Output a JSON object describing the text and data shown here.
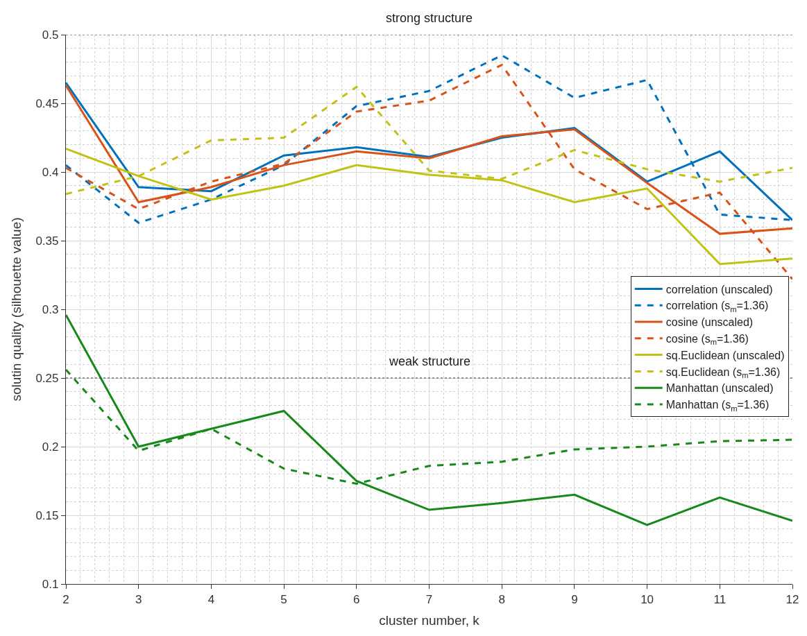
{
  "chart_data": {
    "type": "line",
    "xlabel": "cluster number, k",
    "ylabel": "solutin quality (silhouette value)",
    "x": [
      2,
      3,
      4,
      5,
      6,
      7,
      8,
      9,
      10,
      11,
      12
    ],
    "xlim": [
      2,
      12
    ],
    "xticks": [
      2,
      3,
      4,
      5,
      6,
      7,
      8,
      9,
      10,
      11,
      12
    ],
    "ylim": [
      0.1,
      0.5
    ],
    "yticks": [
      0.1,
      0.15,
      0.2,
      0.25,
      0.3,
      0.35,
      0.4,
      0.45,
      0.5
    ],
    "grid": true,
    "legend": "bottom right",
    "marker": "none",
    "series": [
      {
        "name": "correlation (unscaled)",
        "color": "#0072bd",
        "line_style": "solid",
        "values": [
          0.465,
          0.389,
          0.386,
          0.412,
          0.418,
          0.411,
          0.425,
          0.432,
          0.393,
          0.415,
          0.365
        ]
      },
      {
        "name": "correlation (s$_{m}$=1.36)",
        "color": "#0072bd",
        "line_style": "dashed",
        "values": [
          0.405,
          0.363,
          0.38,
          0.405,
          0.448,
          0.459,
          0.485,
          0.454,
          0.467,
          0.369,
          0.365
        ]
      },
      {
        "name": "cosine (unscaled)",
        "color": "#d95319",
        "line_style": "solid",
        "values": [
          0.463,
          0.378,
          0.389,
          0.405,
          0.415,
          0.41,
          0.426,
          0.431,
          0.392,
          0.355,
          0.359
        ]
      },
      {
        "name": "cosine (s$_{m}$=1.36)",
        "color": "#d95319",
        "line_style": "dashed",
        "values": [
          0.403,
          0.373,
          0.393,
          0.406,
          0.444,
          0.452,
          0.478,
          0.402,
          0.373,
          0.385,
          0.322
        ]
      },
      {
        "name": "sq.Euclidean (unscaled)",
        "color": "#c2c215",
        "line_style": "solid",
        "values": [
          0.417,
          0.397,
          0.38,
          0.39,
          0.405,
          0.398,
          0.394,
          0.378,
          0.388,
          0.333,
          0.337
        ]
      },
      {
        "name": "sq.Euclidean (s$_{m}$=1.36)",
        "color": "#c2c215",
        "line_style": "dashed",
        "values": [
          0.384,
          0.397,
          0.423,
          0.425,
          0.462,
          0.401,
          0.395,
          0.416,
          0.402,
          0.393,
          0.403
        ]
      },
      {
        "name": "Manhattan (unscaled)",
        "color": "#17891a",
        "line_style": "solid",
        "values": [
          0.296,
          0.2,
          0.213,
          0.226,
          0.175,
          0.154,
          0.159,
          0.165,
          0.143,
          0.163,
          0.146
        ]
      },
      {
        "name": "Manhattan (s$_{m}$=1.36)",
        "color": "#17891a",
        "line_style": "dashed",
        "values": [
          0.256,
          0.197,
          0.213,
          0.184,
          0.173,
          0.186,
          0.189,
          0.198,
          0.2,
          0.204,
          0.205
        ]
      }
    ],
    "ref_lines": [
      {
        "axis": "y",
        "value": 0.5,
        "label": "strong structure",
        "color": "#333333",
        "line_style": "dotted"
      },
      {
        "axis": "y",
        "value": 0.25,
        "label": "weak structure",
        "color": "#333333",
        "line_style": "dotted"
      }
    ]
  }
}
